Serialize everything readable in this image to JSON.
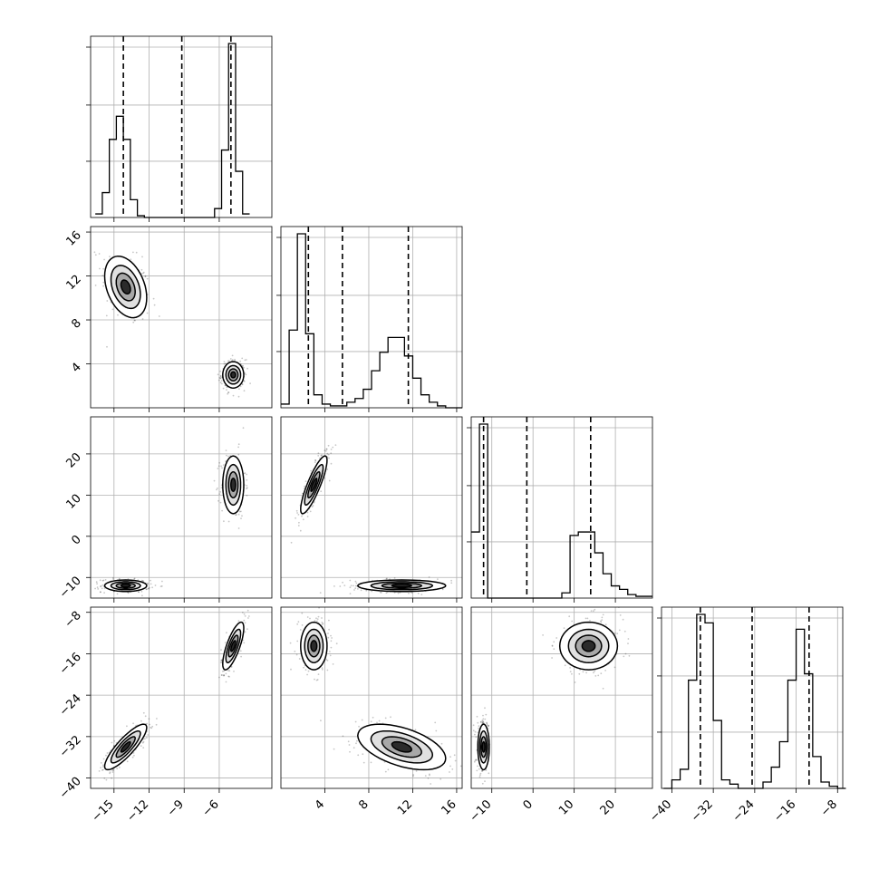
{
  "chart_data": {
    "type": "corner",
    "n_params": 4,
    "grid": true,
    "params": [
      {
        "range": [
          -17,
          -1.5
        ],
        "ticks": [
          -15,
          -12,
          -9,
          -6
        ],
        "tick_labels": [
          "−15",
          "−12",
          "−9",
          "−6"
        ]
      },
      {
        "range": [
          0,
          16.5
        ],
        "ticks": [
          4,
          8,
          12,
          16
        ],
        "tick_labels": [
          "4",
          "8",
          "12",
          "16"
        ]
      },
      {
        "range": [
          -15,
          29
        ],
        "ticks": [
          -10,
          0,
          10,
          20
        ],
        "tick_labels": [
          "−10",
          "0",
          "10",
          "20"
        ]
      },
      {
        "range": [
          -42,
          -7
        ],
        "ticks": [
          -40,
          -32,
          -24,
          -16,
          -8
        ],
        "tick_labels": [
          "−40",
          "−32",
          "−24",
          "−16",
          "−8"
        ]
      }
    ],
    "quantiles": [
      [
        -14.2,
        -9.2,
        -5.0
      ],
      [
        2.5,
        5.6,
        11.6
      ],
      [
        -12.0,
        -1.5,
        14.0
      ],
      [
        -34.5,
        -24.5,
        -13.5
      ]
    ],
    "histograms": [
      {
        "edges": [
          -16.6,
          -16.0,
          -15.4,
          -14.8,
          -14.2,
          -13.6,
          -13.0,
          -12.4,
          -11.8,
          -11.2,
          -10.6,
          -10.0,
          -9.4,
          -8.8,
          -8.2,
          -7.6,
          -7.0,
          -6.4,
          -5.8,
          -5.2,
          -4.6,
          -4.0,
          -3.4
        ],
        "counts": [
          0.02,
          0.14,
          0.44,
          0.57,
          0.44,
          0.1,
          0.01,
          0,
          0,
          0,
          0,
          0,
          0,
          0,
          0,
          0,
          0,
          0.05,
          0.38,
          0.98,
          0.26,
          0.02
        ]
      },
      {
        "edges": [
          0.0,
          0.75,
          1.5,
          2.25,
          3.0,
          3.75,
          4.5,
          5.25,
          6.0,
          6.75,
          7.5,
          8.25,
          9.0,
          9.75,
          10.5,
          11.25,
          12.0,
          12.75,
          13.5,
          14.25,
          15.0,
          15.75,
          16.5
        ],
        "counts": [
          0.02,
          0.42,
          0.94,
          0.4,
          0.07,
          0.02,
          0.01,
          0.01,
          0.03,
          0.05,
          0.1,
          0.2,
          0.3,
          0.38,
          0.38,
          0.28,
          0.16,
          0.07,
          0.03,
          0.01,
          0,
          0
        ]
      },
      {
        "edges": [
          -15.0,
          -13.0,
          -11.0,
          -9.0,
          -7.0,
          -5.0,
          -3.0,
          -1.0,
          1.0,
          3.0,
          5.0,
          7.0,
          9.0,
          11.0,
          13.0,
          15.0,
          17.0,
          19.0,
          21.0,
          23.0,
          25.0,
          27.0,
          29.0
        ],
        "counts": [
          0.38,
          1.0,
          0,
          0,
          0,
          0,
          0,
          0,
          0,
          0,
          0,
          0.03,
          0.36,
          0.38,
          0.38,
          0.26,
          0.14,
          0.07,
          0.05,
          0.02,
          0.01,
          0.01
        ]
      },
      {
        "edges": [
          -41.6,
          -40.0,
          -38.4,
          -36.8,
          -35.2,
          -33.6,
          -32.0,
          -30.4,
          -28.8,
          -27.2,
          -25.6,
          -24.0,
          -22.4,
          -20.8,
          -19.2,
          -17.6,
          -16.0,
          -14.4,
          -12.8,
          -11.2,
          -9.6,
          -8.0,
          -6.4
        ],
        "counts": [
          0,
          0.04,
          0.09,
          0.51,
          0.82,
          0.78,
          0.32,
          0.04,
          0.02,
          0,
          0,
          0,
          0.03,
          0.1,
          0.22,
          0.51,
          0.75,
          0.54,
          0.15,
          0.03,
          0.01,
          0
        ]
      }
    ],
    "modes": [
      {
        "mean": [
          -14.0,
          11.0,
          -12.0,
          -34.0
        ],
        "sd": [
          0.9,
          1.4,
          0.7,
          2.2
        ]
      },
      {
        "mean": [
          -4.8,
          3.0,
          12.5,
          -14.5
        ],
        "sd": [
          0.45,
          0.6,
          3.5,
          2.3
        ]
      }
    ],
    "pair_cov": {
      "1-0": [
        -0.35,
        0.0
      ],
      "2-0": [
        0.0,
        0.0
      ],
      "2-1": [
        0.0,
        0.85
      ],
      "3-0": [
        0.85,
        0.75
      ],
      "3-1": [
        -0.5,
        0.0
      ],
      "3-2": [
        0.0,
        0.0
      ]
    },
    "extra_modes": {
      "2-1": [
        {
          "mean": [
            11.0,
            -12.0
          ],
          "sd": [
            2.0,
            0.7
          ],
          "rho": 0.0
        }
      ],
      "3-1": [
        {
          "mean": [
            11.0,
            -34.0
          ],
          "sd": [
            2.0,
            2.2
          ],
          "rho": -0.5
        }
      ],
      "3-2": [
        {
          "mean": [
            13.5,
            -14.5
          ],
          "sd": [
            3.5,
            2.3
          ],
          "rho": 0.0
        },
        {
          "mean": [
            -12.0,
            -34.0
          ],
          "sd": [
            0.7,
            2.2
          ],
          "rho": 0.0
        }
      ]
    }
  }
}
